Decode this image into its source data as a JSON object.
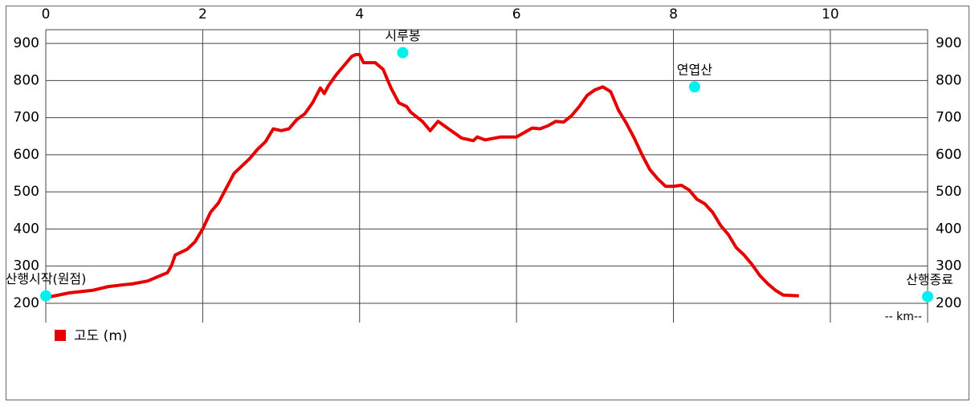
{
  "chart_data": {
    "type": "line",
    "x_label": "-- km--",
    "xlim": [
      0,
      11.24
    ],
    "xticks": [
      0,
      2,
      4,
      6,
      8,
      10
    ],
    "ylim": [
      148,
      937
    ],
    "yticks": [
      200,
      300,
      400,
      500,
      600,
      700,
      800,
      900
    ],
    "grid": true,
    "series": [
      {
        "name": "고도 (m)",
        "color": "#e60000",
        "x": [
          0,
          0.3,
          0.6,
          0.8,
          1.0,
          1.1,
          1.3,
          1.5,
          1.55,
          1.6,
          1.65,
          1.8,
          1.9,
          2.0,
          2.1,
          2.2,
          2.3,
          2.4,
          2.5,
          2.6,
          2.7,
          2.8,
          2.9,
          3.0,
          3.1,
          3.2,
          3.3,
          3.4,
          3.5,
          3.55,
          3.6,
          3.7,
          3.8,
          3.9,
          3.95,
          4.0,
          4.05,
          4.2,
          4.3,
          4.4,
          4.5,
          4.6,
          4.65,
          4.8,
          4.9,
          5.0,
          5.1,
          5.2,
          5.3,
          5.45,
          5.5,
          5.6,
          5.8,
          6.0,
          6.1,
          6.2,
          6.3,
          6.4,
          6.5,
          6.6,
          6.7,
          6.8,
          6.9,
          7.0,
          7.1,
          7.2,
          7.3,
          7.4,
          7.5,
          7.6,
          7.7,
          7.8,
          7.9,
          8.0,
          8.1,
          8.2,
          8.3,
          8.4,
          8.5,
          8.6,
          8.7,
          8.8,
          8.9,
          9.0,
          9.1,
          9.2,
          9.3,
          9.4,
          9.6
        ],
        "values": [
          215,
          228,
          235,
          245,
          250,
          252,
          260,
          278,
          282,
          300,
          330,
          345,
          365,
          400,
          445,
          470,
          510,
          550,
          570,
          590,
          615,
          635,
          670,
          665,
          670,
          695,
          710,
          740,
          780,
          765,
          785,
          815,
          840,
          865,
          870,
          870,
          848,
          848,
          830,
          780,
          740,
          730,
          715,
          690,
          665,
          690,
          675,
          660,
          645,
          638,
          648,
          640,
          648,
          648,
          660,
          672,
          670,
          678,
          690,
          688,
          705,
          730,
          760,
          775,
          783,
          770,
          720,
          685,
          645,
          600,
          560,
          535,
          515,
          515,
          518,
          505,
          480,
          468,
          445,
          410,
          385,
          350,
          330,
          305,
          275,
          253,
          235,
          222,
          220
        ]
      }
    ],
    "points": [
      {
        "label": "산행시작(원점)",
        "x": 0,
        "y": 220
      },
      {
        "label": "시루봉",
        "x": 4.55,
        "y": 875
      },
      {
        "label": "연엽산",
        "x": 8.27,
        "y": 783
      },
      {
        "label": "산행종료",
        "x": 11.24,
        "y": 218
      }
    ]
  }
}
